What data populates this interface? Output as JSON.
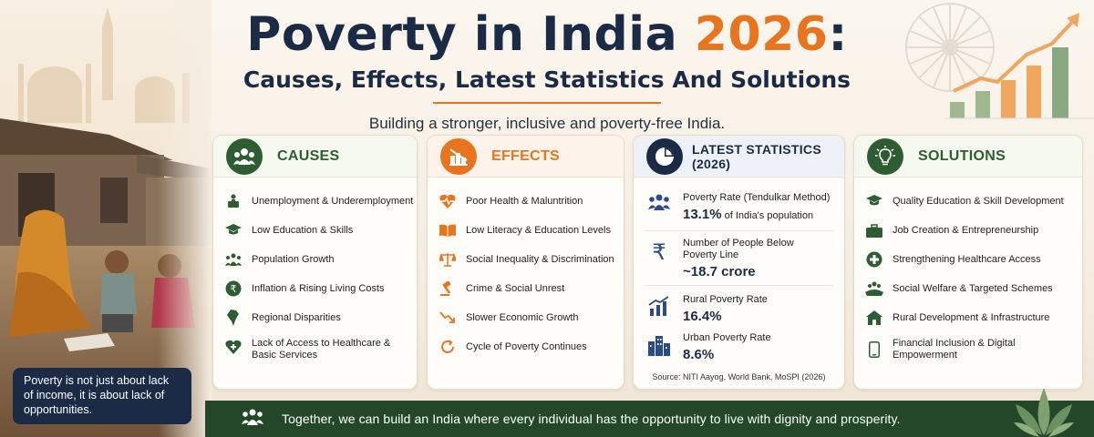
{
  "header": {
    "title_main": "Poverty in India ",
    "title_year": "2026",
    "title_colon": ":",
    "subtitle": "Causes, Effects, Latest Statistics And Solutions",
    "tagline": "Building a stronger, inclusive and poverty-free India."
  },
  "colors": {
    "navy": "#1b2b45",
    "orange": "#e8741e",
    "green": "#2f5d33",
    "blue": "#2a4a8a"
  },
  "causes": {
    "title": "CAUSES",
    "icon": "people-group-icon",
    "items": [
      {
        "icon": "briefcase-person-icon",
        "text": "Unemployment & Underemployment"
      },
      {
        "icon": "graduation-cap-icon",
        "text": "Low Education & Skills"
      },
      {
        "icon": "population-icon",
        "text": "Population Growth"
      },
      {
        "icon": "rupee-circle-icon",
        "text": "Inflation & Rising Living Costs"
      },
      {
        "icon": "india-map-icon",
        "text": "Regional Disparities"
      },
      {
        "icon": "heart-plus-icon",
        "text": "Lack of Access to Healthcare & Basic Services"
      }
    ]
  },
  "effects": {
    "title": "EFFECTS",
    "icon": "declining-chart-icon",
    "items": [
      {
        "icon": "heartbeat-icon",
        "text": "Poor Health & Maluntrition"
      },
      {
        "icon": "open-book-icon",
        "text": "Low Literacy & Education Levels"
      },
      {
        "icon": "scales-icon",
        "text": "Social Inequality & Discrimination"
      },
      {
        "icon": "gavel-icon",
        "text": "Crime & Social Unrest"
      },
      {
        "icon": "down-trend-icon",
        "text": "Slower Economic Growth"
      },
      {
        "icon": "cycle-arrows-icon",
        "text": "Cycle of Poverty Continues"
      }
    ]
  },
  "stats": {
    "title": "LATEST STATISTICS (2026)",
    "icon": "pie-chart-icon",
    "rows": [
      {
        "icon": "people-icon",
        "label": "Poverty Rate (Tendulkar Method)",
        "value": "13.1%",
        "suffix": " of India's population"
      },
      {
        "icon": "rupee-icon",
        "label": "Number of People Below Poverty Line",
        "value": "~18.7 crore",
        "suffix": ""
      },
      {
        "icon": "rising-bars-icon",
        "label": "Rural Poverty Rate",
        "value": "16.4%",
        "suffix": ""
      },
      {
        "icon": "buildings-icon",
        "label": "Urban Poverty Rate",
        "value": "8.6%",
        "suffix": ""
      }
    ],
    "source": "Source: NITI Aayog, World Bank, MoSPI (2026)"
  },
  "solutions": {
    "title": "SOLUTIONS",
    "icon": "lightbulb-icon",
    "items": [
      {
        "icon": "graduation-cap-icon",
        "text": "Quality Education & Skill Development"
      },
      {
        "icon": "briefcase-icon",
        "text": "Job Creation & Entrepreneurship"
      },
      {
        "icon": "medical-cross-icon",
        "text": "Strengthening Healthcare Access"
      },
      {
        "icon": "hands-people-icon",
        "text": "Social Welfare & Targeted Schemes"
      },
      {
        "icon": "house-icon",
        "text": "Rural Development & Infrastructure"
      },
      {
        "icon": "smartphone-icon",
        "text": "Financial Inclusion & Digital Empowerment"
      }
    ]
  },
  "quote": "Poverty is not just about lack of income, it is about lack of opportunities.",
  "footer": {
    "icon": "community-icon",
    "text": "Together, we can build an India where every individual has the opportunity to live with dignity and prosperity."
  }
}
